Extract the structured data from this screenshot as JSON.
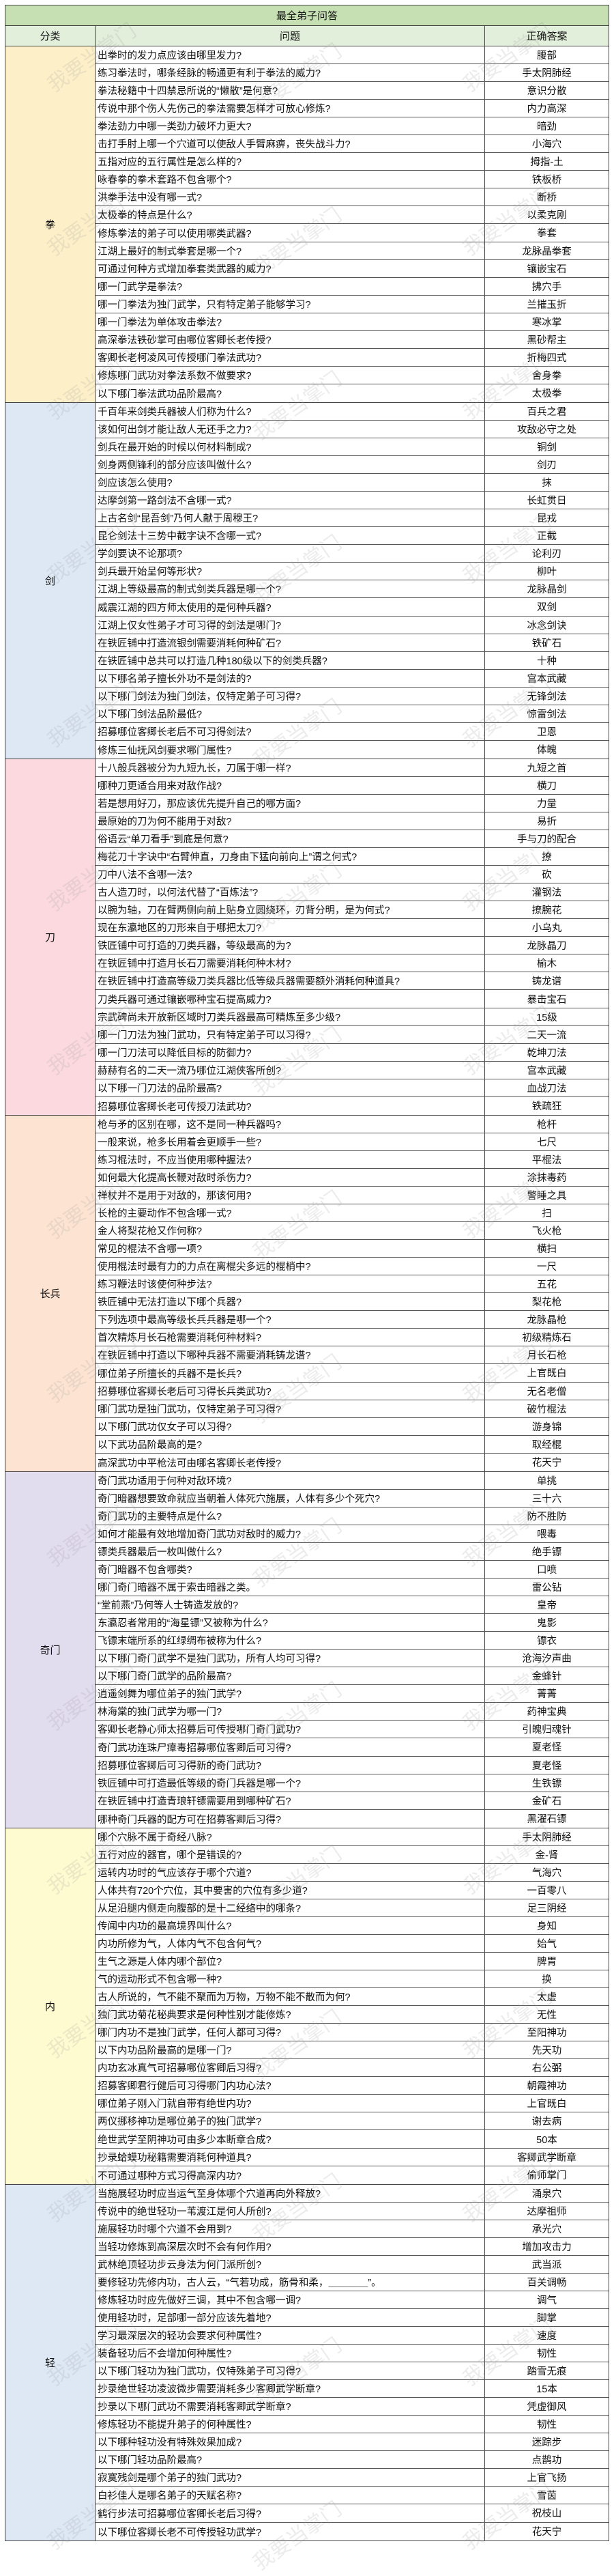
{
  "table": {
    "title": "最全弟子问答",
    "headers": {
      "category": "分类",
      "question": "问题",
      "answer": "正确答案"
    },
    "watermark": "我要当掌门",
    "groups": [
      {
        "category": "拳",
        "color": "#fdf0c9",
        "rows": [
          {
            "q": "出拳时的发力点应该由哪里发力?",
            "a": "腰部"
          },
          {
            "q": "练习拳法时，哪条经脉的畅通更有利于拳法的威力?",
            "a": "手太阴肺经"
          },
          {
            "q": "拳法秘籍中十四禁忌所说的“懒散”是何意?",
            "a": "意识分散"
          },
          {
            "q": "传说中那个伤人先伤己的拳法需要怎样才可放心修炼?",
            "a": "内力高深"
          },
          {
            "q": "拳法劲力中哪一类劲力破坏力更大?",
            "a": "暗劲"
          },
          {
            "q": "击打手肘上哪一个穴道可以使敌人手臂麻痹，丧失战斗力?",
            "a": "小海穴"
          },
          {
            "q": "五指对应的五行属性是怎么样的?",
            "a": "拇指-土"
          },
          {
            "q": "咏春拳的拳术套路不包含哪个?",
            "a": "铁板桥"
          },
          {
            "q": "洪拳手法中没有哪一式?",
            "a": "断桥"
          },
          {
            "q": "太极拳的特点是什么?",
            "a": "以柔克刚"
          },
          {
            "q": "修炼拳法的弟子可以使用哪类武器?",
            "a": "拳套"
          },
          {
            "q": "江湖上最好的制式拳套是哪一个?",
            "a": "龙脉晶拳套"
          },
          {
            "q": "可通过何种方式增加拳套类武器的威力?",
            "a": "镶嵌宝石"
          },
          {
            "q": "哪一门武学是拳法?",
            "a": "拂穴手"
          },
          {
            "q": "哪一门拳法为独门武学，只有特定弟子能够学习?",
            "a": "兰摧玉折"
          },
          {
            "q": "哪一门拳法为单体攻击拳法?",
            "a": "寒冰掌"
          },
          {
            "q": "高深拳法铁砂掌可由哪位客卿长老传授?",
            "a": "黑砂帮主"
          },
          {
            "q": "客卿长老柯凌风可传授哪门拳法武功?",
            "a": "折梅四式"
          },
          {
            "q": "修炼哪门武功对拳法系数不做要求?",
            "a": "舍身拳"
          },
          {
            "q": "以下哪门拳法武功品阶最高?",
            "a": "太极拳"
          }
        ]
      },
      {
        "category": "剑",
        "color": "#dde8f4",
        "rows": [
          {
            "q": "千百年来剑类兵器被人们称为什么?",
            "a": "百兵之君"
          },
          {
            "q": "该如何出剑才能让敌人无还手之力?",
            "a": "攻敌必守之处"
          },
          {
            "q": "剑兵在最开始的时候以何材料制成?",
            "a": "铜剑"
          },
          {
            "q": "剑身两侧锋利的部分应该叫做什么?",
            "a": "剑刃"
          },
          {
            "q": "剑应该怎么使用?",
            "a": "抹"
          },
          {
            "q": "达摩剑第一路剑法不含哪一式?",
            "a": "长虹贯日"
          },
          {
            "q": "上古名剑“昆吾剑”乃何人献于周穆王?",
            "a": "昆戎"
          },
          {
            "q": "昆仑剑法十三势中截字诀不含哪一式?",
            "a": "正截"
          },
          {
            "q": "学剑要诀不论那项?",
            "a": "论利刃"
          },
          {
            "q": "剑兵最开始呈何等形状?",
            "a": "柳叶"
          },
          {
            "q": "江湖上等级最高的制式剑类兵器是哪一个?",
            "a": "龙脉晶剑"
          },
          {
            "q": "威震江湖的四方师太使用的是何种兵器?",
            "a": "双剑"
          },
          {
            "q": "江湖上仅女性弟子才可习得的剑法是哪门?",
            "a": "冰念剑诀"
          },
          {
            "q": "在铁匠铺中打造流银剑需要消耗何种矿石?",
            "a": "铁矿石"
          },
          {
            "q": "在铁匠铺中总共可以打造几种180级以下的剑类兵器?",
            "a": "十种"
          },
          {
            "q": "以下哪名弟子擅长外功不是剑法的?",
            "a": "宫本武藏"
          },
          {
            "q": "以下哪门剑法为独门剑法，仅特定弟子可习得?",
            "a": "无锋剑法"
          },
          {
            "q": "以下哪门剑法品阶最低?",
            "a": "惊雷剑法"
          },
          {
            "q": "招募哪位客卿长老后不可习得剑法?",
            "a": "卫恩"
          },
          {
            "q": "修炼三仙抚风剑要求哪门属性?",
            "a": "体魄"
          }
        ]
      },
      {
        "category": "刀",
        "color": "#fbd9de",
        "rows": [
          {
            "q": "十八般兵器被分为九短九长，刀属于哪一样?",
            "a": "九短之首"
          },
          {
            "q": "哪种刀更适合用来对敌作战?",
            "a": "横刀"
          },
          {
            "q": "若是想用好刀，那应该优先提升自己的哪方面?",
            "a": "力量"
          },
          {
            "q": "最原始的刀为何不能用于对敌?",
            "a": "易折"
          },
          {
            "q": "俗语云“单刀看手”到底是何意?",
            "a": "手与刀的配合"
          },
          {
            "q": "梅花刀十字诀中“右臂伸直，刀身由下猛向前向上”谓之何式?",
            "a": "撩"
          },
          {
            "q": "刀中八法不含哪一法?",
            "a": "砍"
          },
          {
            "q": "古人造刀时，以何法代替了“百炼法”?",
            "a": "灌钢法"
          },
          {
            "q": "以腕为轴，刀在臂两侧向前上贴身立圆绕环，刃背分明，是为何式?",
            "a": "撩腕花"
          },
          {
            "q": "现在东瀛地区的刀形来自于哪把太刀?",
            "a": "小乌丸"
          },
          {
            "q": "铁匠铺中可打造的刀类兵器，等级最高的为?",
            "a": "龙脉晶刀"
          },
          {
            "q": "在铁匠铺中打造月长石刀需要消耗何种木材?",
            "a": "榆木"
          },
          {
            "q": "在铁匠铺中打造高等级刀类兵器比低等级兵器需要额外消耗何种道具?",
            "a": "铸龙谱"
          },
          {
            "q": "刀类兵器可通过镶嵌哪种宝石提高威力?",
            "a": "暴击宝石"
          },
          {
            "q": "宗武碑尚未开放新区域时刀类兵器最高可精炼至多少级?",
            "a": "15级"
          },
          {
            "q": "哪一门刀法为独门武功，只有特定弟子可以习得?",
            "a": "二天一流"
          },
          {
            "q": "哪一门刀法可以降低目标的防御力?",
            "a": "乾坤刀法"
          },
          {
            "q": "赫赫有名的二天一流乃哪位江湖侠客所创?",
            "a": "宫本武藏"
          },
          {
            "q": "以下哪一门刀法的品阶最高?",
            "a": "血战刀法"
          },
          {
            "q": "招募哪位客卿长老可传授刀法武功?",
            "a": "铁疏狂"
          }
        ]
      },
      {
        "category": "长兵",
        "color": "#fde4d2",
        "rows": [
          {
            "q": "枪与矛的区别在哪，这不是同一种兵器吗?",
            "a": "枪杆"
          },
          {
            "q": "一般来说，枪多长用着会更顺手一些?",
            "a": "七尺"
          },
          {
            "q": "练习棍法时，不应当使用哪种握法?",
            "a": "平棍法"
          },
          {
            "q": "如何最大化提高长鞭对敌时杀伤力?",
            "a": "涂抹毒药"
          },
          {
            "q": "禅杖并不是用于对敌的，那该何用?",
            "a": "警睡之具"
          },
          {
            "q": "长枪的主要动作不包含哪一式?",
            "a": "扫"
          },
          {
            "q": "金人将梨花枪又作何称?",
            "a": "飞火枪"
          },
          {
            "q": "常见的棍法不含哪一项?",
            "a": "横扫"
          },
          {
            "q": "使用棍法时最有力的力点在离棍尖多远的棍梢中?",
            "a": "一尺"
          },
          {
            "q": "练习鞭法时该使何种步法?",
            "a": "五花"
          },
          {
            "q": "铁匠铺中无法打造以下哪个兵器?",
            "a": "梨花枪"
          },
          {
            "q": "下列选项中最高等级长兵兵器是哪一个?",
            "a": "龙脉晶枪"
          },
          {
            "q": "首次精炼月长石枪需要消耗何种材料?",
            "a": "初级精炼石"
          },
          {
            "q": "在铁匠铺中打造以下哪种兵器不需要消耗铸龙谱?",
            "a": "月长石枪"
          },
          {
            "q": "哪位弟子所擅长的兵器不是长兵?",
            "a": "上官既白"
          },
          {
            "q": "招募哪位客卿长老后可习得长兵类武功?",
            "a": "无名老僧"
          },
          {
            "q": "哪门武功是独门武功，仅特定弟子可习得?",
            "a": "破竹棍法"
          },
          {
            "q": "以下哪门武功仅女子可以习得?",
            "a": "游身锦"
          },
          {
            "q": "以下武功品阶最高的是?",
            "a": "取经棍"
          },
          {
            "q": "高深武功中平枪法可由哪名客卿长老传授?",
            "a": "花天宁"
          }
        ]
      },
      {
        "category": "奇门",
        "color": "#e2dcef",
        "rows": [
          {
            "q": "奇门武功适用于何种对敌环境?",
            "a": "单挑"
          },
          {
            "q": "奇门暗器想要致命就应当朝着人体死穴施展，人体有多少个死穴?",
            "a": "三十六"
          },
          {
            "q": "奇门武功的主要特点是什么?",
            "a": "防不胜防"
          },
          {
            "q": "如何才能最有效地增加奇门武功对敌时的威力?",
            "a": "喂毒"
          },
          {
            "q": "镖类兵器最后一枚叫做什么?",
            "a": "绝手镖"
          },
          {
            "q": "奇门暗器不包含哪类?",
            "a": "口喷"
          },
          {
            "q": "哪门奇门暗器不属于索击暗器之类。",
            "a": "雷公钻"
          },
          {
            "q": "“堂前燕”乃何等人士铸造发放的?",
            "a": "皇帝"
          },
          {
            "q": "东瀛忍者常用的“海星镖”又被称为什么?",
            "a": "鬼影"
          },
          {
            "q": "飞镖末端所系的红绿绸布被称为什么?",
            "a": "镖衣"
          },
          {
            "q": "以下哪门奇门武学不是独门武功，所有人均可习得?",
            "a": "沧海汐声曲"
          },
          {
            "q": "以下哪门奇门武学的品阶最高?",
            "a": "金蜂针"
          },
          {
            "q": "逍遥剑舞为哪位弟子的独门武学?",
            "a": "菁菁"
          },
          {
            "q": "林海棠的独门武学为哪一门?",
            "a": "药神宝典"
          },
          {
            "q": "客卿长老静心师太招募后可传授哪门奇门武功?",
            "a": "引魄归魂针"
          },
          {
            "q": "奇门武功连珠尸瘴毒招募哪位客卿后可习得?",
            "a": "夏老怪"
          },
          {
            "q": "招募哪位客卿后可习得新的奇门武功?",
            "a": "夏老怪"
          },
          {
            "q": "铁匠铺中可打造最低等级的奇门兵器是哪一个?",
            "a": "生铁镖"
          },
          {
            "q": "在铁匠铺中打造青琅轩镖需要用到哪种矿石?",
            "a": "金矿石"
          },
          {
            "q": "哪种奇门兵器的配方可在招募客卿后习得?",
            "a": "黑濯石镖"
          }
        ]
      },
      {
        "category": "内",
        "color": "#fefbd0",
        "rows": [
          {
            "q": "哪个穴脉不属于奇经八脉?",
            "a": "手太阴肺经"
          },
          {
            "q": "五行对应的器官，哪个是错误的?",
            "a": "金-肾"
          },
          {
            "q": "运转内功时的气应该存于哪个穴道?",
            "a": "气海穴"
          },
          {
            "q": "人体共有720个穴位，其中要害的穴位有多少道?",
            "a": "一百零八"
          },
          {
            "q": "从足沿腿内侧走向腹部的是十二经络中的哪条?",
            "a": "足三阴经"
          },
          {
            "q": "传闻中内功的最高境界叫什么?",
            "a": "身知"
          },
          {
            "q": "内功所修为气，人体内气不包含何气?",
            "a": "始气"
          },
          {
            "q": "生气之源是人体内哪个部位?",
            "a": "脾胃"
          },
          {
            "q": "气的运动形式不包含哪一种?",
            "a": "换"
          },
          {
            "q": "古人所说的，气不能不聚而为万物，万物不能不散而为何?",
            "a": "太虚"
          },
          {
            "q": "独门武功菊花秘典要求是何种性别才能修炼?",
            "a": "无性"
          },
          {
            "q": "哪门内功不是独门武学，任何人都可习得?",
            "a": "至阳神功"
          },
          {
            "q": "以下内功品阶最高的是哪一门?",
            "a": "先天功"
          },
          {
            "q": "内功玄冰真气可招募哪位客卿后习得?",
            "a": "右公弼"
          },
          {
            "q": "招募客卿君行健后可习得哪门内功心法?",
            "a": "朝霞神功"
          },
          {
            "q": "哪位弟子刚入门就自带有绝世内功?",
            "a": "上官既白"
          },
          {
            "q": "两仪挪移神功是哪位弟子的独门武学?",
            "a": "谢去病"
          },
          {
            "q": "绝世武学至阴神功可由多少本断章合成?",
            "a": "50本"
          },
          {
            "q": "抄录蛤蟆功秘籍需要消耗何种道具?",
            "a": "客卿武学断章"
          },
          {
            "q": "不可通过哪种方式习得高深内功?",
            "a": "偷师掌门"
          }
        ]
      },
      {
        "category": "轻",
        "color": "#dde8f4",
        "rows": [
          {
            "q": "当施展轻功时应当运气至身体哪个穴道再向外释放?",
            "a": "涌泉穴"
          },
          {
            "q": "传说中的绝世轻功一苇渡江是何人所创?",
            "a": "达摩祖师"
          },
          {
            "q": "施展轻功时哪个穴道不会用到?",
            "a": "承光穴"
          },
          {
            "q": "当轻功修炼到高深层次时不会有何作用?",
            "a": "增加攻击力"
          },
          {
            "q": "武林绝顶轻功步云身法为何门派所创?",
            "a": "武当派"
          },
          {
            "q": "要修轻功先修内功，古人云，“气若功成，筋骨和柔，＿＿＿＿”。",
            "a": "百关调畅"
          },
          {
            "q": "修炼轻功时应先做好三调，其中不包含哪一调?",
            "a": "调气"
          },
          {
            "q": "使用轻功时，足部哪一部分应该先着地?",
            "a": "脚掌"
          },
          {
            "q": "学习最深层次的轻功会要求何种属性?",
            "a": "速度"
          },
          {
            "q": "装备轻功后不会增加何种属性?",
            "a": "韧性"
          },
          {
            "q": "以下哪门轻功为独门武功，仅特殊弟子可习得?",
            "a": "踏雪无痕"
          },
          {
            "q": "抄录绝世轻功凌波微步需要消耗多少客卿武学断章?",
            "a": "15本"
          },
          {
            "q": "抄录以下哪门武功不需要消耗客卿武学断章?",
            "a": "凭虚御风"
          },
          {
            "q": "修炼轻功不能提升弟子的何种属性?",
            "a": "韧性"
          },
          {
            "q": "以下哪种轻功没有特殊效果加成?",
            "a": "迷踪步"
          },
          {
            "q": "以下哪门轻功品阶最高?",
            "a": "点鹊功"
          },
          {
            "q": "寂寞残剑是哪个弟子的独门武功?",
            "a": "上官飞扬"
          },
          {
            "q": "白衫佳人是哪名弟子的天赋名称?",
            "a": "雪茵"
          },
          {
            "q": "鹤行步法可招募哪位客卿长老后习得?",
            "a": "祝枝山"
          },
          {
            "q": "以下哪位客卿长老不可传授轻功武学?",
            "a": "花天宁"
          }
        ]
      }
    ]
  }
}
